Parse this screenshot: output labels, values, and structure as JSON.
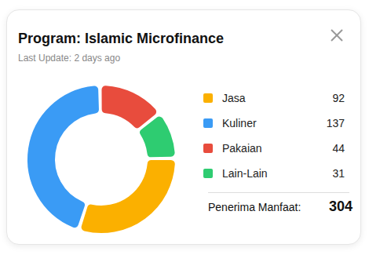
{
  "chart_data": {
    "type": "pie",
    "title": "Program: Islamic Microfinance",
    "subtitle": "Last Update: 2 days ago",
    "categories": [
      "Jasa",
      "Kuliner",
      "Pakaian",
      "Lain-Lain"
    ],
    "values": [
      92,
      137,
      44,
      31
    ],
    "colors": [
      "#fbb000",
      "#3a9bf5",
      "#e84c3d",
      "#2ecc71"
    ],
    "total_label": "Penerima Manfaat:",
    "total": 304
  }
}
